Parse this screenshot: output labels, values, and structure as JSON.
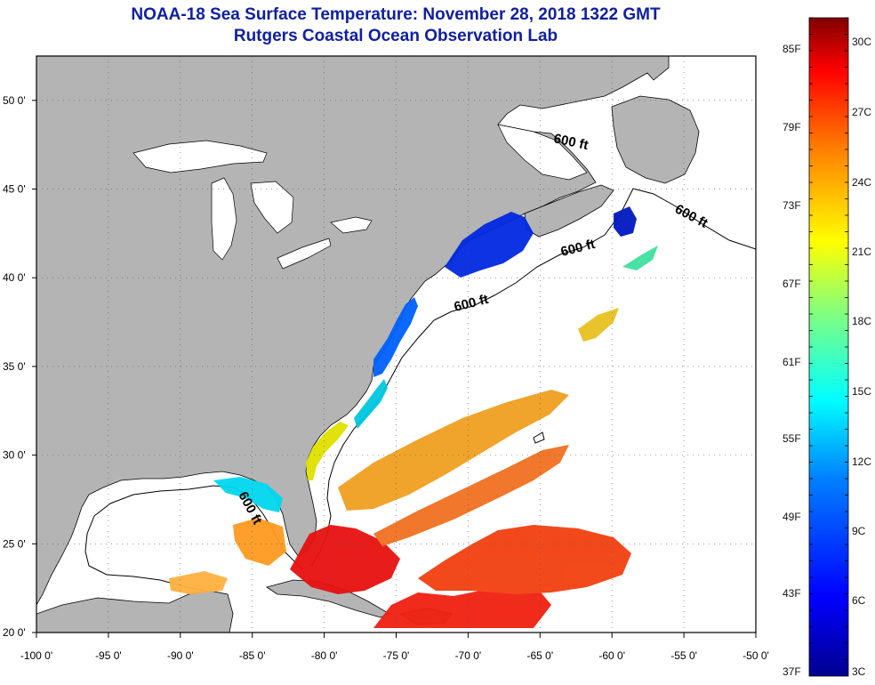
{
  "title_line1": "NOAA-18 Sea Surface Temperature:  November 28, 2018 1322 GMT",
  "title_line2": "Rutgers Coastal Ocean Observation Lab",
  "map": {
    "lon_ticks": [
      "-100 0'",
      "-95 0'",
      "-90 0'",
      "-85 0'",
      "-80 0'",
      "-75 0'",
      "-70 0'",
      "-65 0'",
      "-60 0'",
      "-55 0'",
      "-50 0'"
    ],
    "lat_ticks": [
      "20 0'",
      "25 0'",
      "30 0'",
      "35 0'",
      "40 0'",
      "45 0'",
      "50 0'"
    ],
    "lon_range": [
      -100,
      -50
    ],
    "lat_range": [
      20,
      52.5
    ],
    "contour_labels": [
      "600 ft",
      "600 ft",
      "600 ft",
      "600 ft",
      "600 ft"
    ],
    "land_color": "#b4b4b4",
    "ocean_color": "#ffffff"
  },
  "colorbar": {
    "fahrenheit_labels": [
      "85F",
      "79F",
      "73F",
      "67F",
      "61F",
      "55F",
      "49F",
      "43F",
      "37F"
    ],
    "celsius_labels": [
      "30C",
      "27C",
      "24C",
      "21C",
      "18C",
      "15C",
      "12C",
      "9C",
      "6C",
      "3C"
    ],
    "range_c": [
      3,
      31
    ],
    "colors": [
      "#00008f",
      "#0000ff",
      "#0080ff",
      "#00ffff",
      "#80ff80",
      "#ffff00",
      "#ff8000",
      "#ff0000",
      "#800000"
    ]
  }
}
